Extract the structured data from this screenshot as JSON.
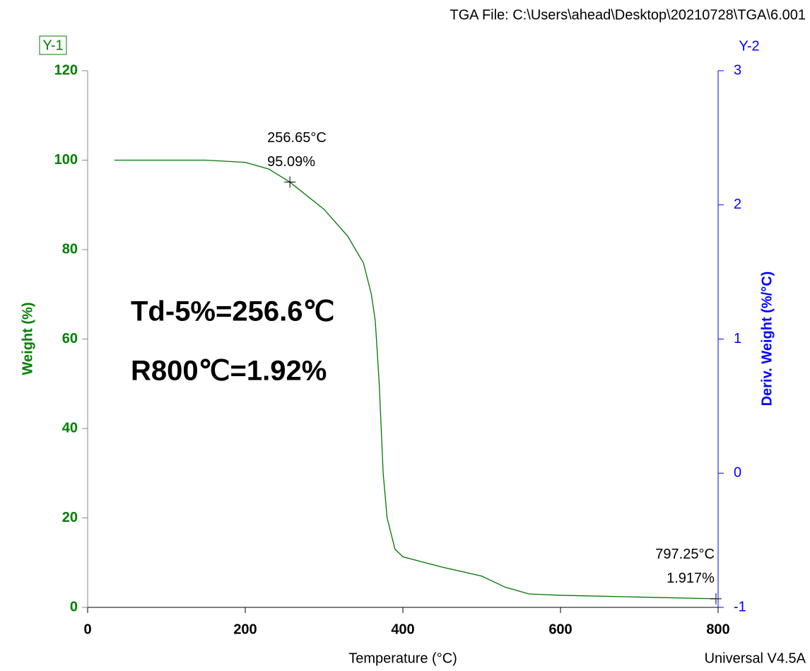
{
  "chart_data": {
    "type": "line",
    "header": "TGA File: C:\\Users\\ahead\\Desktop\\20210728\\TGA\\6.001",
    "y_tag": "Y-1",
    "y2_tag": "Y-2",
    "footer": "Universal V4.5A",
    "x_label": "Temperature (°C)",
    "y_label": "Weight (%)",
    "y2_label": "Deriv. Weight (%/°C)",
    "x": [
      34,
      100,
      150,
      200,
      230,
      256.65,
      300,
      330,
      350,
      360,
      365,
      370,
      375,
      380,
      390,
      400,
      450,
      500,
      530,
      560,
      600,
      700,
      797.25
    ],
    "series": [
      {
        "color": "#007700",
        "values": [
          100,
          100,
          100,
          99.5,
          98,
          95.09,
          89,
          83,
          77,
          70,
          64,
          50,
          30,
          20,
          13,
          11.3,
          9,
          7,
          4.5,
          3,
          2.7,
          2.3,
          1.917
        ]
      }
    ],
    "xlim": [
      0,
      800
    ],
    "xticks": [
      0,
      200,
      400,
      600,
      800
    ],
    "ylim": [
      0,
      120
    ],
    "yticks": [
      0,
      20,
      40,
      60,
      80,
      100,
      120
    ],
    "y2lim": [
      -1,
      3
    ],
    "y2ticks": [
      -1,
      0,
      1,
      2,
      3
    ],
    "markers": [
      {
        "x": 256.65,
        "y": 95.09,
        "x_label": "256.65°C",
        "y_label": "95.09%"
      },
      {
        "x": 797.25,
        "y": 1.917,
        "x_label": "797.25°C",
        "y_label": "1.917%"
      }
    ],
    "annotations": [
      "Td-5%=256.6℃",
      "R800℃=1.92%"
    ]
  }
}
